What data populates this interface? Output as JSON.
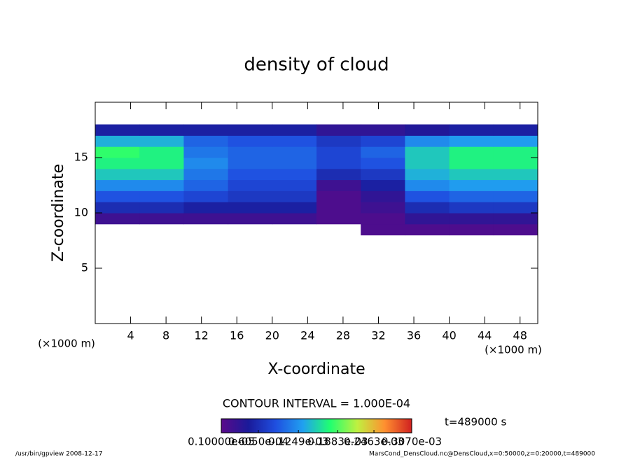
{
  "chart_data": {
    "type": "heatmap",
    "title": "density of cloud",
    "x_label": "X-coordinate",
    "y_label": "Z-coordinate",
    "x_unit": "(×1000 m)",
    "y_unit": "(×1000 m)",
    "contour_note": "CONTOUR INTERVAL = 1.000E-04",
    "time_note": "t=489000 s",
    "footer_left": "/usr/bin/gpview  2008-12-17",
    "footer_right": "MarsCond_DensCloud.nc@DensCloud,x=0:50000,z=0:20000,t=489000",
    "xlim": [
      0,
      50
    ],
    "ylim": [
      0,
      20
    ],
    "xticks": [
      4,
      8,
      12,
      16,
      20,
      24,
      28,
      32,
      36,
      40,
      44,
      48
    ],
    "yticks": [
      5,
      10,
      15
    ],
    "x_edges": [
      0,
      5,
      10,
      15,
      20,
      25,
      30,
      35,
      40,
      45,
      50
    ],
    "z_edges": [
      8,
      9,
      10,
      11,
      12,
      13,
      14,
      15,
      16,
      17,
      18
    ],
    "values": [
      [
        null,
        null,
        null,
        null,
        null,
        null,
        1e-05,
        1e-05,
        1e-05,
        1e-05
      ],
      [
        2e-05,
        2e-05,
        2e-05,
        2e-05,
        2e-05,
        1e-05,
        1e-05,
        3e-05,
        3e-05,
        3e-05
      ],
      [
        6e-05,
        6e-05,
        5e-05,
        5e-05,
        5e-05,
        1e-05,
        2e-05,
        6e-05,
        7e-05,
        7e-05
      ],
      [
        9e-05,
        9e-05,
        8e-05,
        7e-05,
        7e-05,
        1e-05,
        3e-05,
        9e-05,
        0.0001,
        0.0001
      ],
      [
        0.00012,
        0.00012,
        0.0001,
        8e-05,
        8e-05,
        2e-05,
        5e-05,
        0.00012,
        0.00013,
        0.00013
      ],
      [
        0.00015,
        0.00015,
        0.00011,
        9e-05,
        9e-05,
        6e-05,
        7e-05,
        0.00014,
        0.00015,
        0.00015
      ],
      [
        0.00017,
        0.00017,
        0.00012,
        0.0001,
        0.0001,
        8e-05,
        9e-05,
        0.00015,
        0.00017,
        0.00017
      ],
      [
        0.00018,
        0.00017,
        0.00011,
        0.0001,
        0.0001,
        8e-05,
        0.0001,
        0.00015,
        0.00017,
        0.00017
      ],
      [
        0.00014,
        0.00014,
        0.0001,
        9e-05,
        9e-05,
        7e-05,
        8e-05,
        0.00012,
        0.00013,
        0.00013
      ],
      [
        5e-05,
        5e-05,
        5e-05,
        5e-05,
        5e-05,
        3e-05,
        3e-05,
        4e-05,
        5e-05,
        5e-05
      ]
    ],
    "clim": [
      1e-06,
      0.000307
    ],
    "colormap": [
      "#5a0a8a",
      "#1a1a9a",
      "#1f4fe0",
      "#20a0f0",
      "#20ff70",
      "#c0f040",
      "#ff9030",
      "#d02020"
    ],
    "colorbar_ticks": [
      {
        "value": 1e-06,
        "label": "0.10000e-05"
      },
      {
        "value": 6.05e-05,
        "label": "0.6050e-04"
      },
      {
        "value": 0.0001249,
        "label": "0.1249e-03"
      },
      {
        "value": 0.0001883,
        "label": "0.1883e-03"
      },
      {
        "value": 0.0002463,
        "label": "0.2463e-03"
      },
      {
        "value": 0.000307,
        "label": "0.3070e-03"
      }
    ]
  }
}
